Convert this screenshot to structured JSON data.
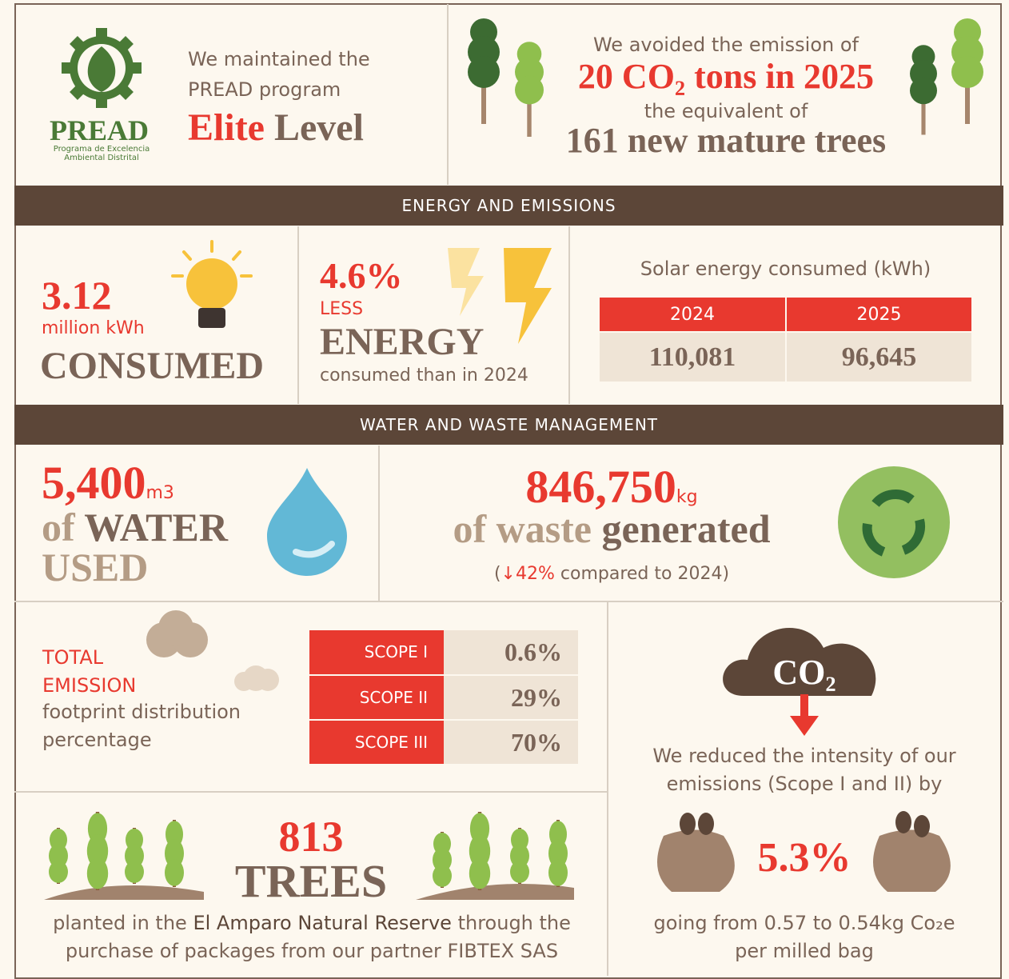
{
  "pread": {
    "logo_name": "PREAD",
    "logo_sub": "Programa de Excelencia Ambiental Distrital",
    "line_1": "We maintained the",
    "line_2": "PREAD program",
    "level_1": "Elite",
    "level_2": "Level"
  },
  "avoided": {
    "line_1": "We avoided the emission of",
    "highlight": "20 CO₂ tons in 2025",
    "line_3": "the equivalent of",
    "trees": "161 new mature trees"
  },
  "sections": {
    "energy": "ENERGY AND EMISSIONS",
    "water": "WATER AND WASTE MANAGEMENT"
  },
  "consumed": {
    "value": "3.12",
    "unit": "million kWh",
    "label": "CONSUMED"
  },
  "less_energy": {
    "value": "4.6%",
    "less": "LESS",
    "energy": "ENERGY",
    "note": "consumed than in 2024"
  },
  "solar": {
    "title": "Solar energy consumed (kWh)",
    "headers": [
      "2024",
      "2025"
    ],
    "values": [
      "110,081",
      "96,645"
    ]
  },
  "water": {
    "value": "5,400",
    "unit": "m3",
    "of": "of",
    "water": "WATER",
    "used": "USED"
  },
  "waste": {
    "value": "846,750",
    "unit": "kg",
    "of_waste": "of waste",
    "generated": "generated",
    "open": "(",
    "change": "↓42%",
    "note": "compared to 2024)"
  },
  "emission": {
    "label_1": "TOTAL EMISSION",
    "label_2": "footprint distribution percentage",
    "rows": [
      [
        "SCOPE I",
        "0.6%"
      ],
      [
        "SCOPE II",
        "29%"
      ],
      [
        "SCOPE III",
        "70%"
      ]
    ]
  },
  "trees": {
    "value": "813",
    "label": "TREES",
    "text_1": "planted in the",
    "reserve": "El Amparo Natural Reserve",
    "text_2": "through the purchase of packages from our partner FIBTEX SAS"
  },
  "intensity": {
    "co2": "CO₂",
    "text": "We reduced the intensity of our emissions (Scope I and II) by",
    "value": "5.3%",
    "note": "going from 0.57 to 0.54kg Co₂e per milled bag"
  }
}
